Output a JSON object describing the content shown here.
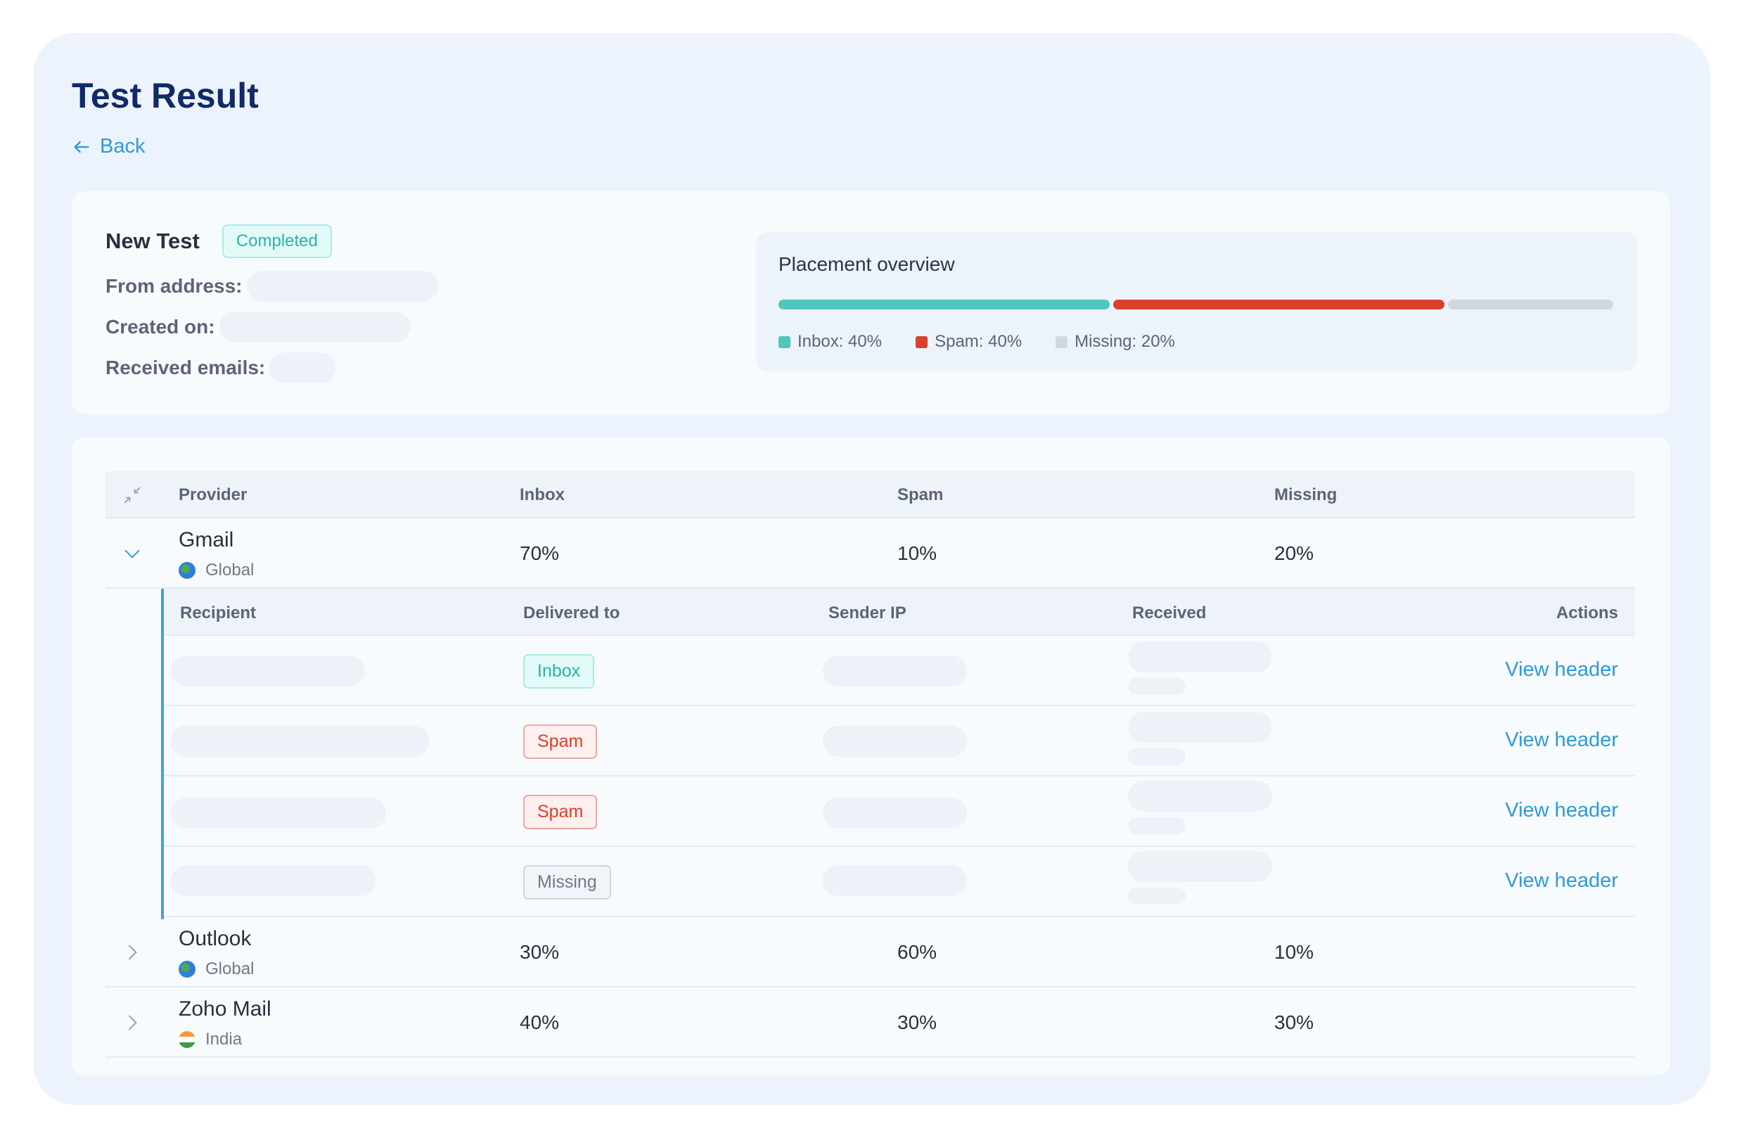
{
  "page": {
    "title": "Test Result",
    "back_label": "Back"
  },
  "summary": {
    "test_name": "New Test",
    "status": "Completed",
    "from_label": "From address:",
    "created_label": "Created on:",
    "received_label": "Received emails:"
  },
  "placement": {
    "title": "Placement overview",
    "segments": [
      {
        "name": "Inbox",
        "percent": 40,
        "color": "#4fc7bd",
        "label": "Inbox: 40%"
      },
      {
        "name": "Spam",
        "percent": 40,
        "color": "#d9402d",
        "label": "Spam: 40%"
      },
      {
        "name": "Missing",
        "percent": 20,
        "color": "#d1d7e0",
        "label": "Missing: 20%"
      }
    ]
  },
  "table": {
    "headers": {
      "provider": "Provider",
      "inbox": "Inbox",
      "spam": "Spam",
      "missing": "Missing"
    },
    "providers": [
      {
        "name": "Gmail",
        "region": "Global",
        "inbox": "70%",
        "spam": "10%",
        "missing": "20%",
        "expanded": true
      },
      {
        "name": "Outlook",
        "region": "Global",
        "inbox": "30%",
        "spam": "60%",
        "missing": "10%",
        "expanded": false
      },
      {
        "name": "Zoho Mail",
        "region": "India",
        "inbox": "40%",
        "spam": "30%",
        "missing": "30%",
        "expanded": false
      }
    ],
    "sub_headers": {
      "recipient": "Recipient",
      "delivered": "Delivered to",
      "sender_ip": "Sender IP",
      "received": "Received",
      "actions": "Actions"
    },
    "sub_rows": [
      {
        "delivered": "Inbox",
        "action": "View header"
      },
      {
        "delivered": "Spam",
        "action": "View header"
      },
      {
        "delivered": "Spam",
        "action": "View header"
      },
      {
        "delivered": "Missing",
        "action": "View header"
      }
    ]
  },
  "icons": {
    "back": "arrow-left-icon",
    "collapse": "collapse-arrows-icon",
    "expanded": "chevron-down-icon",
    "collapsed": "chevron-right-icon",
    "globe": "globe-icon",
    "india_flag": "india-flag-icon"
  }
}
